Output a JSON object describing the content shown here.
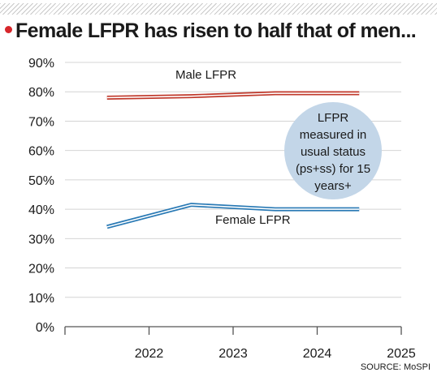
{
  "headline": "Female LFPR has risen to half that of men...",
  "source": "SOURCE: MoSPI",
  "chart_data": {
    "type": "line",
    "title": "",
    "xlabel": "",
    "ylabel": "",
    "x_ticks": [
      "2022",
      "2023",
      "2024",
      "2025"
    ],
    "y_ticks": [
      "0%",
      "10%",
      "20%",
      "30%",
      "40%",
      "50%",
      "60%",
      "70%",
      "80%",
      "90%"
    ],
    "ylim": [
      0,
      90
    ],
    "xlim": [
      2021,
      2025
    ],
    "grid": "horizontal",
    "series": [
      {
        "name": "Male LFPR",
        "x": [
          2021.5,
          2022.5,
          2023.5,
          2024.5
        ],
        "values": [
          78,
          78.5,
          79.5,
          79.5
        ],
        "color": "#c0392b"
      },
      {
        "name": "Female LFPR",
        "x": [
          2021.5,
          2022.5,
          2023.5,
          2024.5
        ],
        "values": [
          34,
          41.5,
          40,
          40
        ],
        "color": "#2a7ab5"
      }
    ],
    "annotation": {
      "lines": [
        "LFPR",
        "measured in",
        "usual status",
        "(ps+ss) for 15",
        "years+"
      ],
      "color": "#c3d6e8"
    }
  }
}
